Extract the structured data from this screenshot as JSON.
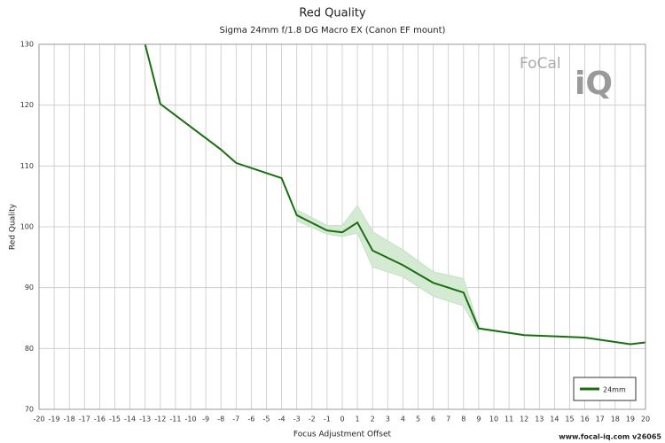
{
  "chart_data": {
    "type": "line",
    "title": "Red Quality",
    "subtitle": "Sigma 24mm f/1.8 DG Macro EX (Canon EF mount)",
    "x_label": "Focus Adjustment Offset",
    "y_label": "Red Quality",
    "footer": "www.focal-iq.com v26065",
    "logo": [
      "FoCal",
      "iQ"
    ],
    "x": [
      -13,
      -12,
      -8,
      -7,
      -4,
      -3,
      -1,
      0,
      1,
      2,
      4,
      6,
      8,
      9,
      12,
      16,
      19,
      20
    ],
    "series": [
      {
        "name": "24mm",
        "color": "#1a6e12",
        "values": [
          130,
          120.2,
          112.7,
          110.5,
          108.0,
          101.9,
          99.4,
          99.1,
          100.7,
          96.1,
          93.7,
          90.8,
          89.2,
          83.3,
          82.2,
          81.8,
          80.7,
          81.0
        ]
      }
    ],
    "band": {
      "color": "#d5ead3",
      "x": [
        -3,
        -1,
        0,
        1,
        2,
        4,
        6,
        8,
        9
      ],
      "upper": [
        102.8,
        100.2,
        100.2,
        103.5,
        99.2,
        96.2,
        92.6,
        91.5,
        83.6
      ],
      "lower": [
        101.0,
        98.8,
        98.4,
        99.0,
        93.4,
        91.8,
        88.6,
        87.0,
        82.6
      ]
    },
    "xlim": [
      -20,
      20
    ],
    "xticks": [
      -20,
      -19,
      -18,
      -17,
      -16,
      -15,
      -14,
      -13,
      -12,
      -11,
      -10,
      -9,
      -8,
      -7,
      -6,
      -5,
      -4,
      -3,
      -2,
      -1,
      0,
      1,
      2,
      3,
      4,
      5,
      6,
      7,
      8,
      9,
      10,
      11,
      12,
      13,
      14,
      15,
      16,
      17,
      18,
      19,
      20
    ],
    "ylim": [
      70,
      130
    ],
    "yticks": [
      70,
      80,
      90,
      100,
      110,
      120,
      130
    ],
    "grid": true,
    "legend": "bottom-right"
  }
}
